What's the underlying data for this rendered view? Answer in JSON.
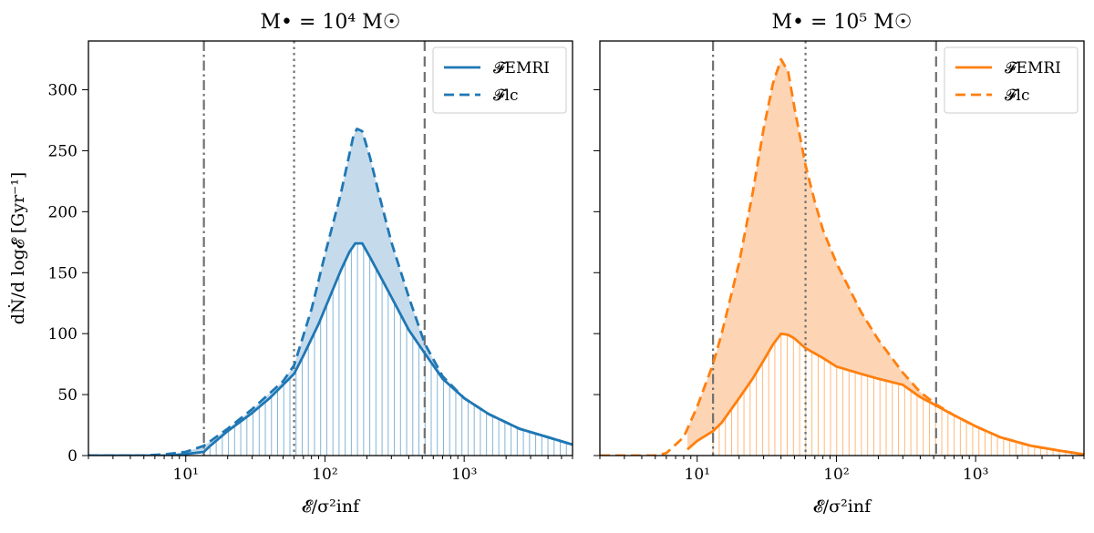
{
  "chart_data": [
    {
      "type": "line",
      "title": "M• = 10⁴ M☉",
      "xlabel": "𝓔/σ²inf",
      "ylabel": "dṄ/d log𝓔 [Gyr⁻¹]",
      "xscale": "log",
      "xlim": [
        2,
        6000
      ],
      "ylim": [
        0,
        340
      ],
      "xticks": [
        10,
        100,
        1000
      ],
      "xtick_labels": [
        "10¹",
        "10²",
        "10³"
      ],
      "yticks": [
        0,
        50,
        100,
        150,
        200,
        250,
        300
      ],
      "ytick_labels": [
        "0",
        "50",
        "100",
        "150",
        "200",
        "250",
        "300"
      ],
      "color": "#1f77b4",
      "fill_color": "#c5dbec",
      "vlines": [
        {
          "x": 13.5,
          "style": "dashdot"
        },
        {
          "x": 60,
          "style": "dotted"
        },
        {
          "x": 520,
          "style": "dashed"
        }
      ],
      "legend": {
        "position": "top-right",
        "entries": [
          {
            "label": "𝓕EMRI",
            "style": "solid"
          },
          {
            "label": "𝓕lc",
            "style": "dashed"
          }
        ]
      },
      "series": [
        {
          "name": "F_EMRI",
          "style": "solid",
          "x": [
            2,
            3,
            5,
            8,
            13.5,
            15,
            20,
            30,
            40,
            50,
            60,
            70,
            90,
            110,
            130,
            150,
            165,
            185,
            210,
            250,
            300,
            400,
            520,
            700,
            1000,
            1500,
            2500,
            4000,
            6000
          ],
          "y": [
            0,
            0,
            0,
            0,
            3,
            8,
            20,
            35,
            47,
            58,
            67,
            82,
            108,
            132,
            152,
            167,
            174,
            174,
            163,
            147,
            130,
            103,
            84,
            63,
            47,
            34,
            22,
            15,
            9
          ]
        },
        {
          "name": "F_lc",
          "style": "dashed",
          "x": [
            2,
            3,
            5,
            7,
            10,
            13.5,
            20,
            30,
            40,
            50,
            60,
            80,
            100,
            130,
            160,
            170,
            185,
            210,
            250,
            300,
            400,
            520,
            700,
            1000,
            1500,
            2500,
            4000,
            6000
          ],
          "y": [
            0,
            0,
            0,
            1,
            3,
            8,
            22,
            38,
            51,
            61,
            74,
            120,
            165,
            215,
            262,
            268,
            266,
            245,
            210,
            175,
            130,
            92,
            65,
            47,
            34,
            22,
            15,
            9
          ]
        }
      ]
    },
    {
      "type": "line",
      "title": "M• = 10⁵ M☉",
      "xlabel": "𝓔/σ²inf",
      "ylabel": "",
      "xscale": "log",
      "xlim": [
        2,
        6000
      ],
      "ylim": [
        0,
        340
      ],
      "xticks": [
        10,
        100,
        1000
      ],
      "xtick_labels": [
        "10¹",
        "10²",
        "10³"
      ],
      "yticks": [
        0,
        50,
        100,
        150,
        200,
        250,
        300
      ],
      "ytick_labels": [
        "",
        "",
        "",
        "",
        "",
        "",
        ""
      ],
      "color": "#ff7f0e",
      "fill_color": "#fdd5b4",
      "vlines": [
        {
          "x": 13,
          "style": "dashdot"
        },
        {
          "x": 60,
          "style": "dotted"
        },
        {
          "x": 520,
          "style": "dashed"
        }
      ],
      "legend": {
        "position": "top-right",
        "entries": [
          {
            "label": "𝓕EMRI",
            "style": "solid"
          },
          {
            "label": "𝓕lc",
            "style": "dashed"
          }
        ]
      },
      "series": [
        {
          "name": "F_EMRI",
          "style": "solid",
          "x": [
            8.5,
            10,
            13,
            15,
            20,
            25,
            30,
            35,
            40,
            45,
            50,
            60,
            80,
            100,
            150,
            200,
            300,
            400,
            520,
            700,
            1000,
            1500,
            2500,
            4000,
            6000
          ],
          "y": [
            5,
            12,
            20,
            27,
            47,
            63,
            78,
            91,
            100,
            99,
            96,
            88,
            80,
            73,
            67,
            63,
            58,
            48,
            41,
            33,
            24,
            15,
            8,
            4,
            1
          ]
        },
        {
          "name": "F_lc",
          "style": "dashed",
          "x": [
            2,
            3,
            4,
            5,
            6,
            8,
            10,
            13,
            15,
            20,
            25,
            30,
            35,
            40,
            45,
            50,
            60,
            70,
            80,
            100,
            150,
            200,
            300,
            400,
            520,
            700,
            1000,
            1500,
            2500,
            4000,
            6000
          ],
          "y": [
            0,
            0,
            0,
            0,
            2,
            15,
            40,
            75,
            100,
            158,
            215,
            268,
            305,
            325,
            315,
            285,
            238,
            208,
            185,
            158,
            118,
            95,
            68,
            52,
            42,
            33,
            24,
            15,
            8,
            4,
            1
          ]
        }
      ]
    }
  ]
}
